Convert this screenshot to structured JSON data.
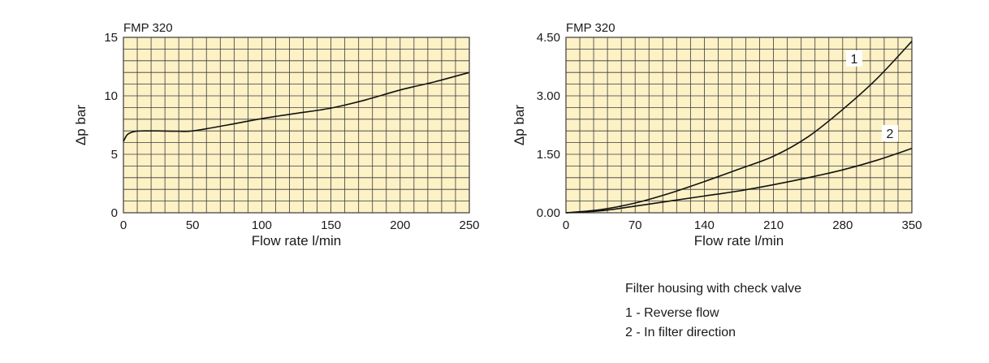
{
  "chart_data": [
    {
      "type": "line",
      "title": "FMP 320",
      "xlabel": "Flow rate l/min",
      "ylabel": "Δp bar",
      "xlim": [
        0,
        250
      ],
      "ylim": [
        0,
        15
      ],
      "xticks": [
        0,
        50,
        100,
        150,
        200,
        250
      ],
      "yticks": [
        0,
        5,
        10,
        15
      ],
      "x_tick_labels": [
        "0",
        "50",
        "100",
        "150",
        "200",
        "250"
      ],
      "y_tick_labels": [
        "0",
        "5",
        "10",
        "15"
      ],
      "grid": true,
      "series": [
        {
          "x": [
            0,
            3,
            8,
            15,
            25,
            40,
            50,
            75,
            100,
            125,
            150,
            175,
            200,
            225,
            250
          ],
          "y": [
            6.1,
            6.7,
            6.95,
            7.0,
            7.0,
            6.97,
            7.0,
            7.5,
            8.05,
            8.5,
            8.95,
            9.65,
            10.5,
            11.2,
            12.0
          ]
        }
      ]
    },
    {
      "type": "line",
      "title": "FMP 320",
      "xlabel": "Flow rate l/min",
      "ylabel": "Δp bar",
      "xlim": [
        0,
        350
      ],
      "ylim": [
        0,
        4.5
      ],
      "xticks": [
        0,
        70,
        140,
        210,
        280,
        350
      ],
      "yticks": [
        0,
        1.5,
        3.0,
        4.5
      ],
      "x_tick_labels": [
        "0",
        "70",
        "140",
        "210",
        "280",
        "350"
      ],
      "y_tick_labels": [
        "0.00",
        "1.50",
        "3.00",
        "4.50"
      ],
      "grid": true,
      "series": [
        {
          "label": "1",
          "x": [
            0,
            35,
            70,
            105,
            140,
            175,
            210,
            245,
            280,
            315,
            350
          ],
          "y": [
            0,
            0.08,
            0.25,
            0.5,
            0.8,
            1.12,
            1.45,
            1.95,
            2.65,
            3.45,
            4.4
          ]
        },
        {
          "label": "2",
          "x": [
            0,
            35,
            70,
            105,
            140,
            175,
            210,
            245,
            280,
            315,
            350
          ],
          "y": [
            0,
            0.05,
            0.17,
            0.3,
            0.43,
            0.56,
            0.72,
            0.9,
            1.1,
            1.35,
            1.65
          ]
        }
      ]
    }
  ],
  "notes": {
    "heading": "Filter housing with check valve",
    "items": [
      "1 - Reverse flow",
      "2 - In filter direction"
    ]
  },
  "colors": {
    "plot_background": "#fdf1c6",
    "grid": "#3a3a3a",
    "line": "#111111"
  }
}
